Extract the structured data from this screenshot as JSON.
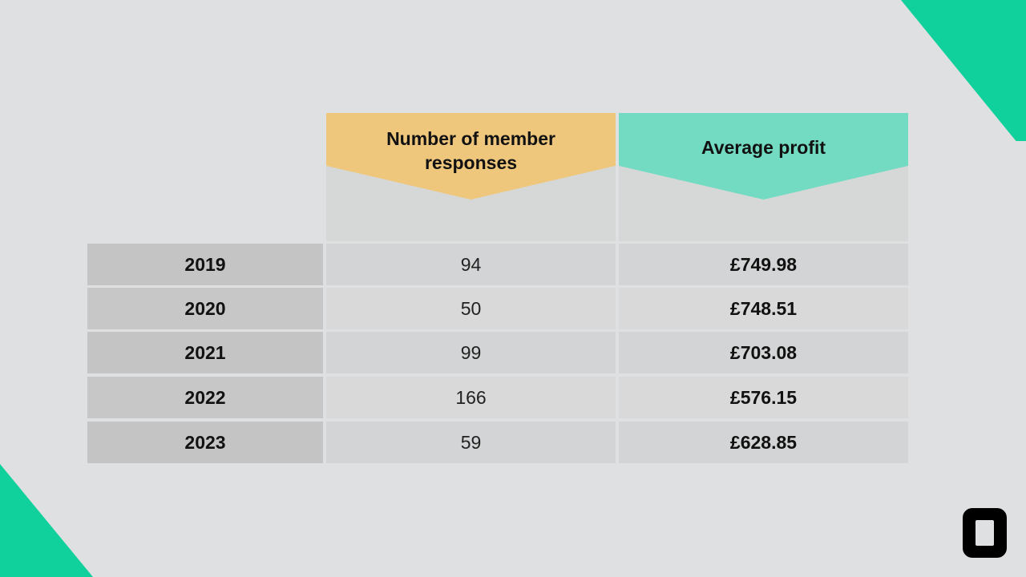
{
  "colors": {
    "brand": "#10d19c",
    "orange": "#eec77d",
    "teal": "#72dbc1"
  },
  "table": {
    "headers": {
      "responses": "Number of member responses",
      "profit": "Average profit"
    },
    "rows": [
      {
        "year": "2019",
        "responses": "94",
        "profit": "£749.98"
      },
      {
        "year": "2020",
        "responses": "50",
        "profit": "£748.51"
      },
      {
        "year": "2021",
        "responses": "99",
        "profit": "£703.08"
      },
      {
        "year": "2022",
        "responses": "166",
        "profit": "£576.15"
      },
      {
        "year": "2023",
        "responses": "59",
        "profit": "£628.85"
      }
    ]
  },
  "logo": {
    "icon": "rounded-square-logo-icon"
  }
}
